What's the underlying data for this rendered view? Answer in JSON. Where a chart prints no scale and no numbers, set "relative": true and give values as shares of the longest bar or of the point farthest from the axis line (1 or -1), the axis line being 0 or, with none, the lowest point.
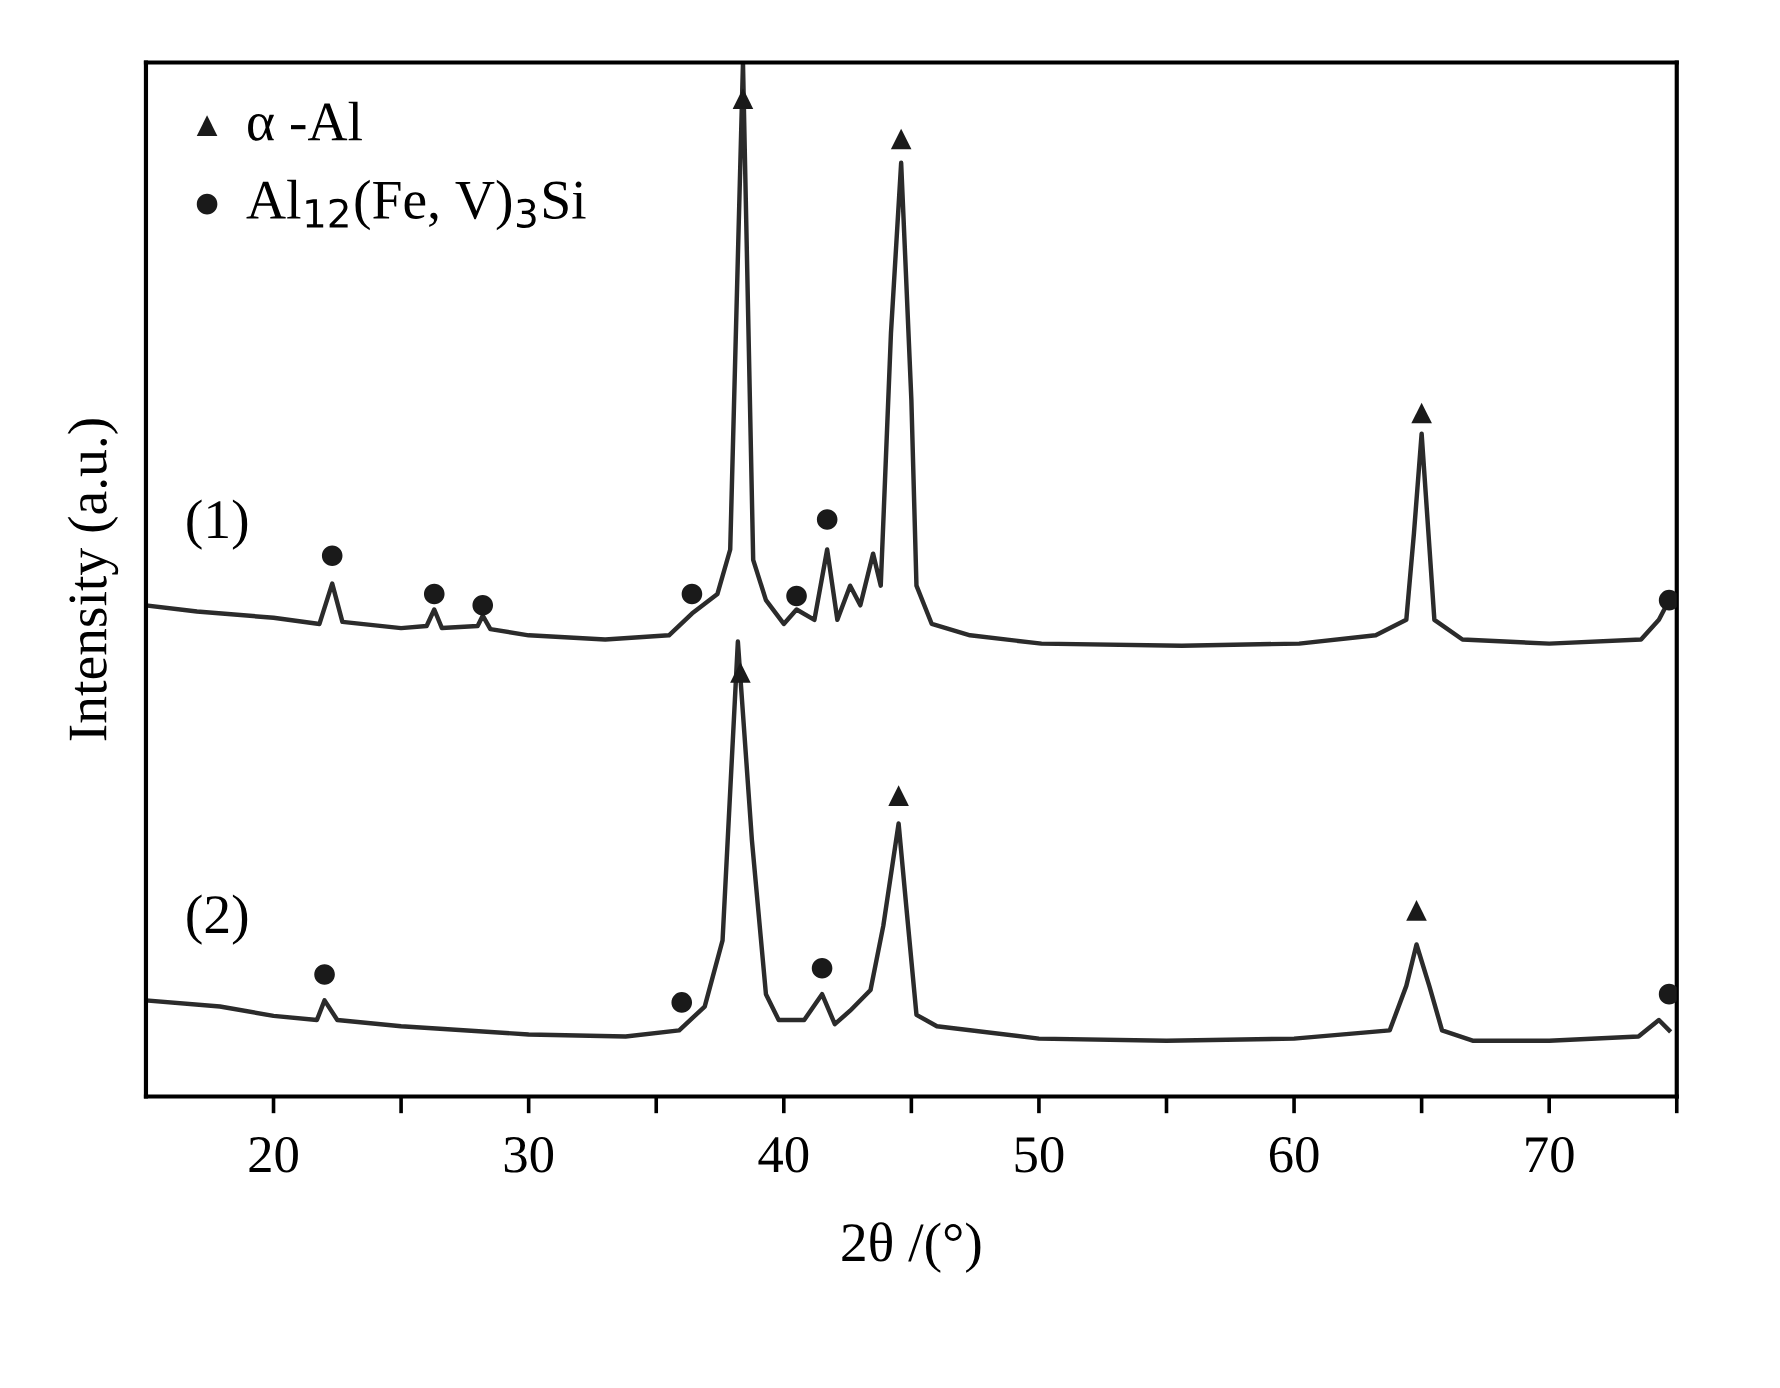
{
  "chart_data": {
    "type": "line",
    "relative": true,
    "xlabel": "2θ /(°)",
    "ylabel": "Intensity (a.u.)",
    "xlim": [
      15,
      75
    ],
    "xticks": [
      20,
      {
        "value": 25,
        "label": null
      },
      30,
      {
        "value": 35,
        "label": null
      },
      40,
      {
        "value": 45,
        "label": null
      },
      50,
      {
        "value": 55,
        "label": null
      },
      60,
      {
        "value": 65,
        "label": null
      },
      70,
      {
        "value": 75,
        "label": null
      }
    ],
    "grid": false,
    "legend": "top left",
    "line_style": "solid",
    "annotations": [
      "(1)",
      "(2)"
    ],
    "series": [
      {
        "color": "#2b2b2b",
        "marker": "none",
        "x": [
          15.0,
          17,
          20,
          21.8,
          22.3,
          22.7,
          25,
          26.0,
          26.3,
          26.6,
          28.0,
          28.2,
          28.5,
          30,
          33,
          35.5,
          36.4,
          37.4,
          37.9,
          38.4,
          38.8,
          39.3,
          40.0,
          40.5,
          41.2,
          41.7,
          42.1,
          42.6,
          43.0,
          43.5,
          43.8,
          44.2,
          44.6,
          45.0,
          45.2,
          45.8,
          47.3,
          50.1,
          55.6,
          60.2,
          63.2,
          64.4,
          64.7,
          65.0,
          65.3,
          65.5,
          66.6,
          70,
          73.6,
          74.3,
          74.7
        ],
        "values": [
          0.475,
          0.469,
          0.463,
          0.457,
          0.496,
          0.459,
          0.453,
          0.455,
          0.471,
          0.453,
          0.455,
          0.465,
          0.452,
          0.446,
          0.442,
          0.446,
          0.467,
          0.486,
          0.529,
          1.0,
          0.519,
          0.48,
          0.457,
          0.471,
          0.461,
          0.529,
          0.461,
          0.494,
          0.475,
          0.525,
          0.494,
          0.738,
          0.903,
          0.674,
          0.494,
          0.457,
          0.446,
          0.438,
          0.436,
          0.438,
          0.446,
          0.461,
          0.545,
          0.641,
          0.533,
          0.461,
          0.442,
          0.438,
          0.442,
          0.461,
          0.48
        ]
      },
      {
        "color": "#2b2b2b",
        "marker": "none",
        "x": [
          15.0,
          17.9,
          20,
          21.7,
          22.0,
          22.5,
          25,
          30,
          33.8,
          35.9,
          36.9,
          37.6,
          38.2,
          38.75,
          39.3,
          39.8,
          40.8,
          41.5,
          42.0,
          42.6,
          43.4,
          43.9,
          44.5,
          44.8,
          45.2,
          46.0,
          50,
          55,
          60,
          63.75,
          64.4,
          64.8,
          65.3,
          65.8,
          67,
          70,
          73.5,
          74.3,
          74.7
        ],
        "values": [
          0.093,
          0.087,
          0.078,
          0.074,
          0.093,
          0.074,
          0.068,
          0.06,
          0.058,
          0.064,
          0.087,
          0.151,
          0.44,
          0.248,
          0.099,
          0.074,
          0.074,
          0.099,
          0.07,
          0.083,
          0.103,
          0.165,
          0.264,
          0.184,
          0.079,
          0.068,
          0.056,
          0.054,
          0.056,
          0.064,
          0.107,
          0.147,
          0.107,
          0.064,
          0.054,
          0.054,
          0.058,
          0.074,
          0.064
        ]
      },
      {
        "type": "scatter",
        "name": "α -Al",
        "color": "#1a1a1a",
        "marker": "triangle",
        "x": [
          38.4,
          44.6,
          65.0,
          38.3,
          44.5,
          64.8
        ],
        "values": [
          0.965,
          0.926,
          0.661,
          0.41,
          0.291,
          0.18
        ]
      },
      {
        "type": "scatter",
        "name": "Al$_{12}$(Fe, V)$_{3}$Si",
        "color": "#1a1a1a",
        "marker": "circle",
        "x": [
          22.3,
          26.3,
          28.2,
          36.4,
          40.5,
          41.7,
          74.7,
          22.0,
          36.0,
          41.5,
          74.7
        ],
        "values": [
          0.523,
          0.486,
          0.475,
          0.486,
          0.484,
          0.558,
          0.48,
          0.118,
          0.091,
          0.124,
          0.099
        ]
      }
    ]
  }
}
